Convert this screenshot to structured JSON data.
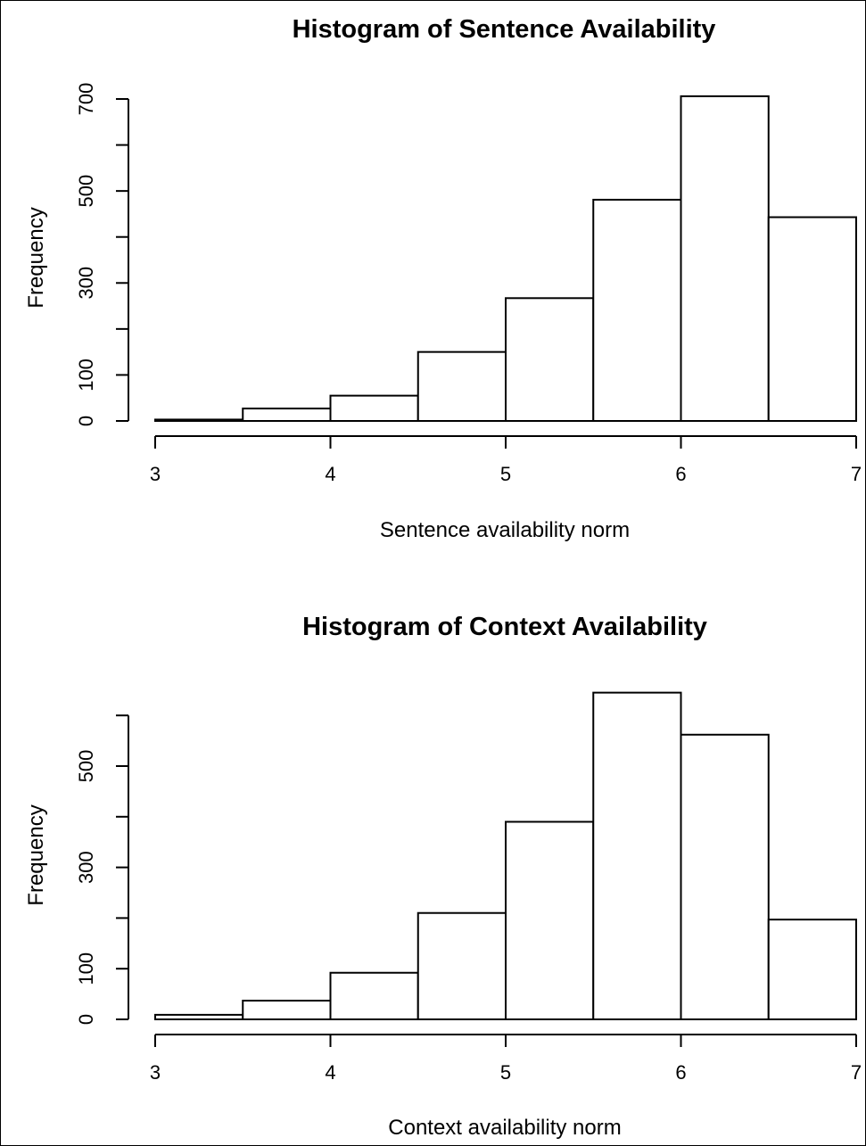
{
  "chart_data": [
    {
      "type": "bar",
      "title": "Histogram of Sentence Availability",
      "xlabel": "Sentence availability norm",
      "ylabel": "Frequency",
      "bins": [
        [
          3,
          3.5
        ],
        [
          3.5,
          4
        ],
        [
          4,
          4.5
        ],
        [
          4.5,
          5
        ],
        [
          5,
          5.5
        ],
        [
          5.5,
          6
        ],
        [
          6,
          6.5
        ],
        [
          6.5,
          7
        ]
      ],
      "values": [
        3,
        27,
        55,
        150,
        267,
        481,
        706,
        443
      ],
      "xlim": [
        3,
        7
      ],
      "ylim": [
        0,
        700
      ],
      "xticks": [
        3,
        4,
        5,
        6,
        7
      ],
      "yticks": [
        0,
        100,
        300,
        500,
        700
      ],
      "grid": false
    },
    {
      "type": "bar",
      "title": "Histogram of Context Availability",
      "xlabel": "Context availability norm",
      "ylabel": "Frequency",
      "bins": [
        [
          3,
          3.5
        ],
        [
          3.5,
          4
        ],
        [
          4,
          4.5
        ],
        [
          4.5,
          5
        ],
        [
          5,
          5.5
        ],
        [
          5.5,
          6
        ],
        [
          6,
          6.5
        ],
        [
          6.5,
          7
        ]
      ],
      "values": [
        9,
        37,
        92,
        210,
        390,
        645,
        562,
        197
      ],
      "xlim": [
        3,
        7
      ],
      "ylim": [
        0,
        600
      ],
      "xticks": [
        3,
        4,
        5,
        6,
        7
      ],
      "yticks": [
        0,
        100,
        300,
        500
      ],
      "grid": false
    }
  ]
}
